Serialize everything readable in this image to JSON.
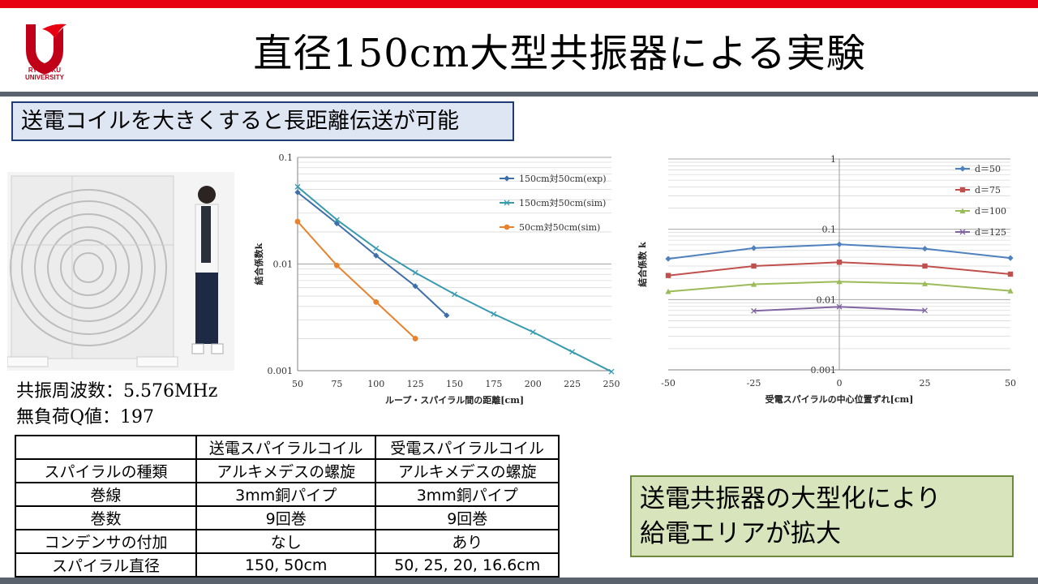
{
  "header": {
    "title": "直径150cm大型共振器による実験",
    "logo_text_1": "RYUKOKU",
    "logo_text_2": "UNIVERSITY"
  },
  "subtitle": "送電コイルを大きくすると長距離伝送が可能",
  "specs": {
    "freq": "共振周波数：5.576MHz",
    "q": "無負荷Q値：197"
  },
  "table": {
    "headers": [
      "",
      "送電スパイラルコイル",
      "受電スパイラルコイル"
    ],
    "rows": [
      [
        "スパイラルの種類",
        "アルキメデスの螺旋",
        "アルキメデスの螺旋"
      ],
      [
        "巻線",
        "3mm銅パイプ",
        "3mm銅パイプ"
      ],
      [
        "巻数",
        "9回巻",
        "9回巻"
      ],
      [
        "コンデンサの付加",
        "なし",
        "あり"
      ],
      [
        "スパイラル直径",
        "150, 50cm",
        "50, 25, 20, 16.6cm"
      ]
    ]
  },
  "note": {
    "line1": "送電共振器の大型化により",
    "line2": "給電エリアが拡大"
  },
  "colors": {
    "accent_red": "#e60012",
    "bar_gray": "#5a626e"
  },
  "chart_data": [
    {
      "type": "line",
      "xlabel": "ループ・スパイラル間の距離[cm]",
      "ylabel": "結合係数k",
      "xscale": "linear",
      "yscale": "log",
      "xlim": [
        50,
        250
      ],
      "ylim": [
        0.001,
        0.1
      ],
      "x_ticks": [
        "50",
        "75",
        "100",
        "125",
        "150",
        "175",
        "200",
        "225",
        "250"
      ],
      "y_ticks": [
        "0.1",
        "0.01",
        "0.001"
      ],
      "legend_position": "top-right",
      "series": [
        {
          "name": "150cm対50cm(exp)",
          "color": "#3e6fa8",
          "marker": "diamond",
          "x": [
            50,
            75,
            100,
            125,
            145
          ],
          "y": [
            0.047,
            0.024,
            0.012,
            0.0062,
            0.0033
          ]
        },
        {
          "name": "150cm対50cm(sim)",
          "color": "#3a9bb0",
          "marker": "x",
          "x": [
            50,
            75,
            100,
            125,
            150,
            175,
            200,
            225,
            250
          ],
          "y": [
            0.053,
            0.026,
            0.014,
            0.0083,
            0.0052,
            0.0034,
            0.0023,
            0.0015,
            0.00098
          ]
        },
        {
          "name": "50cm対50cm(sim)",
          "color": "#e8822c",
          "marker": "circle",
          "x": [
            50,
            75,
            100,
            125
          ],
          "y": [
            0.025,
            0.0097,
            0.0044,
            0.002
          ]
        }
      ]
    },
    {
      "type": "line",
      "xlabel": "受電スパイラルの中心位置ずれ[cm]",
      "ylabel": "結合係数 k",
      "xscale": "linear",
      "yscale": "log",
      "xlim": [
        -50,
        50
      ],
      "ylim": [
        0.001,
        1
      ],
      "x_ticks": [
        "-50",
        "-25",
        "0",
        "25",
        "50"
      ],
      "y_ticks": [
        "1",
        "0.1",
        "0.01",
        "0.001"
      ],
      "legend_position": "right",
      "series": [
        {
          "name": "d＝50",
          "color": "#4f81bd",
          "marker": "diamond",
          "x": [
            -50,
            -25,
            0,
            25,
            50
          ],
          "y": [
            0.038,
            0.054,
            0.061,
            0.053,
            0.039
          ]
        },
        {
          "name": "d＝75",
          "color": "#c0504d",
          "marker": "square",
          "x": [
            -50,
            -25,
            0,
            25,
            50
          ],
          "y": [
            0.022,
            0.03,
            0.034,
            0.03,
            0.023
          ]
        },
        {
          "name": "d＝100",
          "color": "#9bbb59",
          "marker": "triangle",
          "x": [
            -50,
            -25,
            0,
            25,
            50
          ],
          "y": [
            0.013,
            0.0165,
            0.018,
            0.0168,
            0.0133
          ]
        },
        {
          "name": "d＝125",
          "color": "#8064a2",
          "marker": "x",
          "x": [
            -25,
            0,
            25
          ],
          "y": [
            0.0069,
            0.0079,
            0.007
          ]
        }
      ]
    }
  ]
}
